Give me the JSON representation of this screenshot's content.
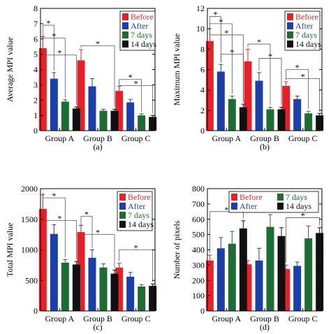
{
  "colors": {
    "Before": "#e8202a",
    "After": "#1d3fa8",
    "7 days": "#1f6b34",
    "14 days": "#111111"
  },
  "chart_data": [
    {
      "type": "bar",
      "panel_label": "(a)",
      "ylabel": "Average MPI value",
      "categories": [
        "Group A",
        "Group B",
        "Group C"
      ],
      "ylim": [
        0,
        8
      ],
      "yticks": [
        0,
        1,
        2,
        3,
        4,
        5,
        6,
        7,
        8
      ],
      "legend_position": "top-right",
      "series": [
        {
          "name": "Before",
          "values": [
            5.4,
            4.6,
            2.6
          ],
          "errors": [
            0.75,
            0.7,
            0.3
          ]
        },
        {
          "name": "After",
          "values": [
            3.4,
            2.9,
            1.85
          ],
          "errors": [
            0.4,
            0.5,
            0.2
          ]
        },
        {
          "name": "7 days",
          "values": [
            1.9,
            1.3,
            1.0
          ],
          "errors": [
            0.12,
            0.1,
            0.1
          ]
        },
        {
          "name": "14 days",
          "values": [
            1.45,
            1.3,
            0.9
          ],
          "errors": [
            0.1,
            0.1,
            0.1
          ]
        }
      ],
      "significance": [
        {
          "group": 0,
          "from": 0,
          "to": 1,
          "y": 6.9,
          "label": "*"
        },
        {
          "group": 0,
          "from": 0,
          "to": 2,
          "y": 6.05,
          "label": "*"
        },
        {
          "group": 0,
          "from": 0,
          "to": 3,
          "y": 4.95,
          "label": "*"
        },
        {
          "group": 1,
          "from": 0,
          "to": 3,
          "y": 5.55,
          "label": "*"
        },
        {
          "group": 2,
          "from": 0,
          "to": 2,
          "y": 3.35,
          "label": "*"
        },
        {
          "group": 2,
          "from": 0,
          "to": 3,
          "y": 2.95,
          "label": "*"
        }
      ]
    },
    {
      "type": "bar",
      "panel_label": "(b)",
      "ylabel": "Maximum MPI value",
      "categories": [
        "Group A",
        "Group B",
        "Group C"
      ],
      "ylim": [
        0,
        12
      ],
      "yticks": [
        0,
        2,
        4,
        6,
        8,
        10,
        12
      ],
      "legend_position": "top-right",
      "series": [
        {
          "name": "Before",
          "values": [
            8.8,
            6.8,
            4.4
          ],
          "errors": [
            1.2,
            1.2,
            0.4
          ]
        },
        {
          "name": "After",
          "values": [
            5.8,
            4.9,
            3.1
          ],
          "errors": [
            0.7,
            0.8,
            0.3
          ]
        },
        {
          "name": "7 days",
          "values": [
            3.1,
            2.1,
            1.7
          ],
          "errors": [
            0.3,
            0.2,
            0.2
          ]
        },
        {
          "name": "14 days",
          "values": [
            2.3,
            2.1,
            1.5
          ],
          "errors": [
            0.3,
            0.2,
            0.2
          ]
        }
      ],
      "significance": [
        {
          "group": 0,
          "from": 0,
          "to": 1,
          "y": 11.2,
          "label": "*"
        },
        {
          "group": 0,
          "from": 0,
          "to": 2,
          "y": 10.5,
          "label": "*"
        },
        {
          "group": 0,
          "from": 0,
          "to": 3,
          "y": 9.4,
          "label": "*"
        },
        {
          "group": 0,
          "from": 1,
          "to": 3,
          "y": 7.5,
          "label": "*"
        },
        {
          "group": 1,
          "from": 0,
          "to": 2,
          "y": 8.5,
          "label": "*"
        },
        {
          "group": 1,
          "from": 1,
          "to": 3,
          "y": 7.1,
          "label": "*"
        },
        {
          "group": 2,
          "from": 0,
          "to": 2,
          "y": 6.0,
          "label": "*"
        },
        {
          "group": 2,
          "from": 0,
          "to": 3,
          "y": 5.1,
          "label": "*"
        }
      ]
    },
    {
      "type": "bar",
      "panel_label": "(c)",
      "ylabel": "Total MPI value",
      "categories": [
        "Group A",
        "Group B",
        "Group C"
      ],
      "ylim": [
        0,
        2000
      ],
      "yticks": [
        0,
        500,
        1000,
        1500,
        2000
      ],
      "legend_position": "top-right",
      "series": [
        {
          "name": "Before",
          "values": [
            1670,
            1290,
            710
          ],
          "errors": [
            230,
            110,
            70
          ]
        },
        {
          "name": "After",
          "values": [
            1260,
            870,
            560
          ],
          "errors": [
            150,
            130,
            70
          ]
        },
        {
          "name": "7 days",
          "values": [
            790,
            710,
            400
          ],
          "errors": [
            50,
            60,
            30
          ]
        },
        {
          "name": "14 days",
          "values": [
            760,
            610,
            410
          ],
          "errors": [
            50,
            60,
            30
          ]
        }
      ],
      "significance": [
        {
          "group": 0,
          "from": 0,
          "to": 2,
          "y": 1850,
          "label": "*"
        },
        {
          "group": 0,
          "from": 0,
          "to": 3,
          "y": 1480,
          "label": "*"
        },
        {
          "group": 1,
          "from": 0,
          "to": 1,
          "y": 1550,
          "label": "*"
        },
        {
          "group": 1,
          "from": 0,
          "to": 3,
          "y": 1250,
          "label": "*"
        },
        {
          "group": 2,
          "from": 0,
          "to": 3,
          "y": 1000,
          "label": "*"
        }
      ]
    },
    {
      "type": "bar",
      "panel_label": "(d)",
      "ylabel": "Number of pixels",
      "categories": [
        "Group A",
        "Group B",
        "Group C"
      ],
      "ylim": [
        0,
        800
      ],
      "yticks": [
        0,
        100,
        200,
        300,
        400,
        500,
        600,
        700,
        800
      ],
      "legend_position": "top",
      "series": [
        {
          "name": "Before",
          "values": [
            330,
            305,
            275
          ],
          "errors": [
            35,
            25,
            25
          ]
        },
        {
          "name": "After",
          "values": [
            410,
            330,
            295
          ],
          "errors": [
            70,
            80,
            25
          ]
        },
        {
          "name": "7 days",
          "values": [
            440,
            550,
            475
          ],
          "errors": [
            80,
            80,
            80
          ]
        },
        {
          "name": "14 days",
          "values": [
            540,
            490,
            510
          ],
          "errors": [
            50,
            55,
            35
          ]
        }
      ],
      "significance": [
        {
          "group": 0,
          "from": 0,
          "to": 3,
          "y": 650,
          "label": "*"
        },
        {
          "group": 2,
          "from": 0,
          "to": 3,
          "y": 610,
          "label": "*"
        }
      ]
    }
  ]
}
